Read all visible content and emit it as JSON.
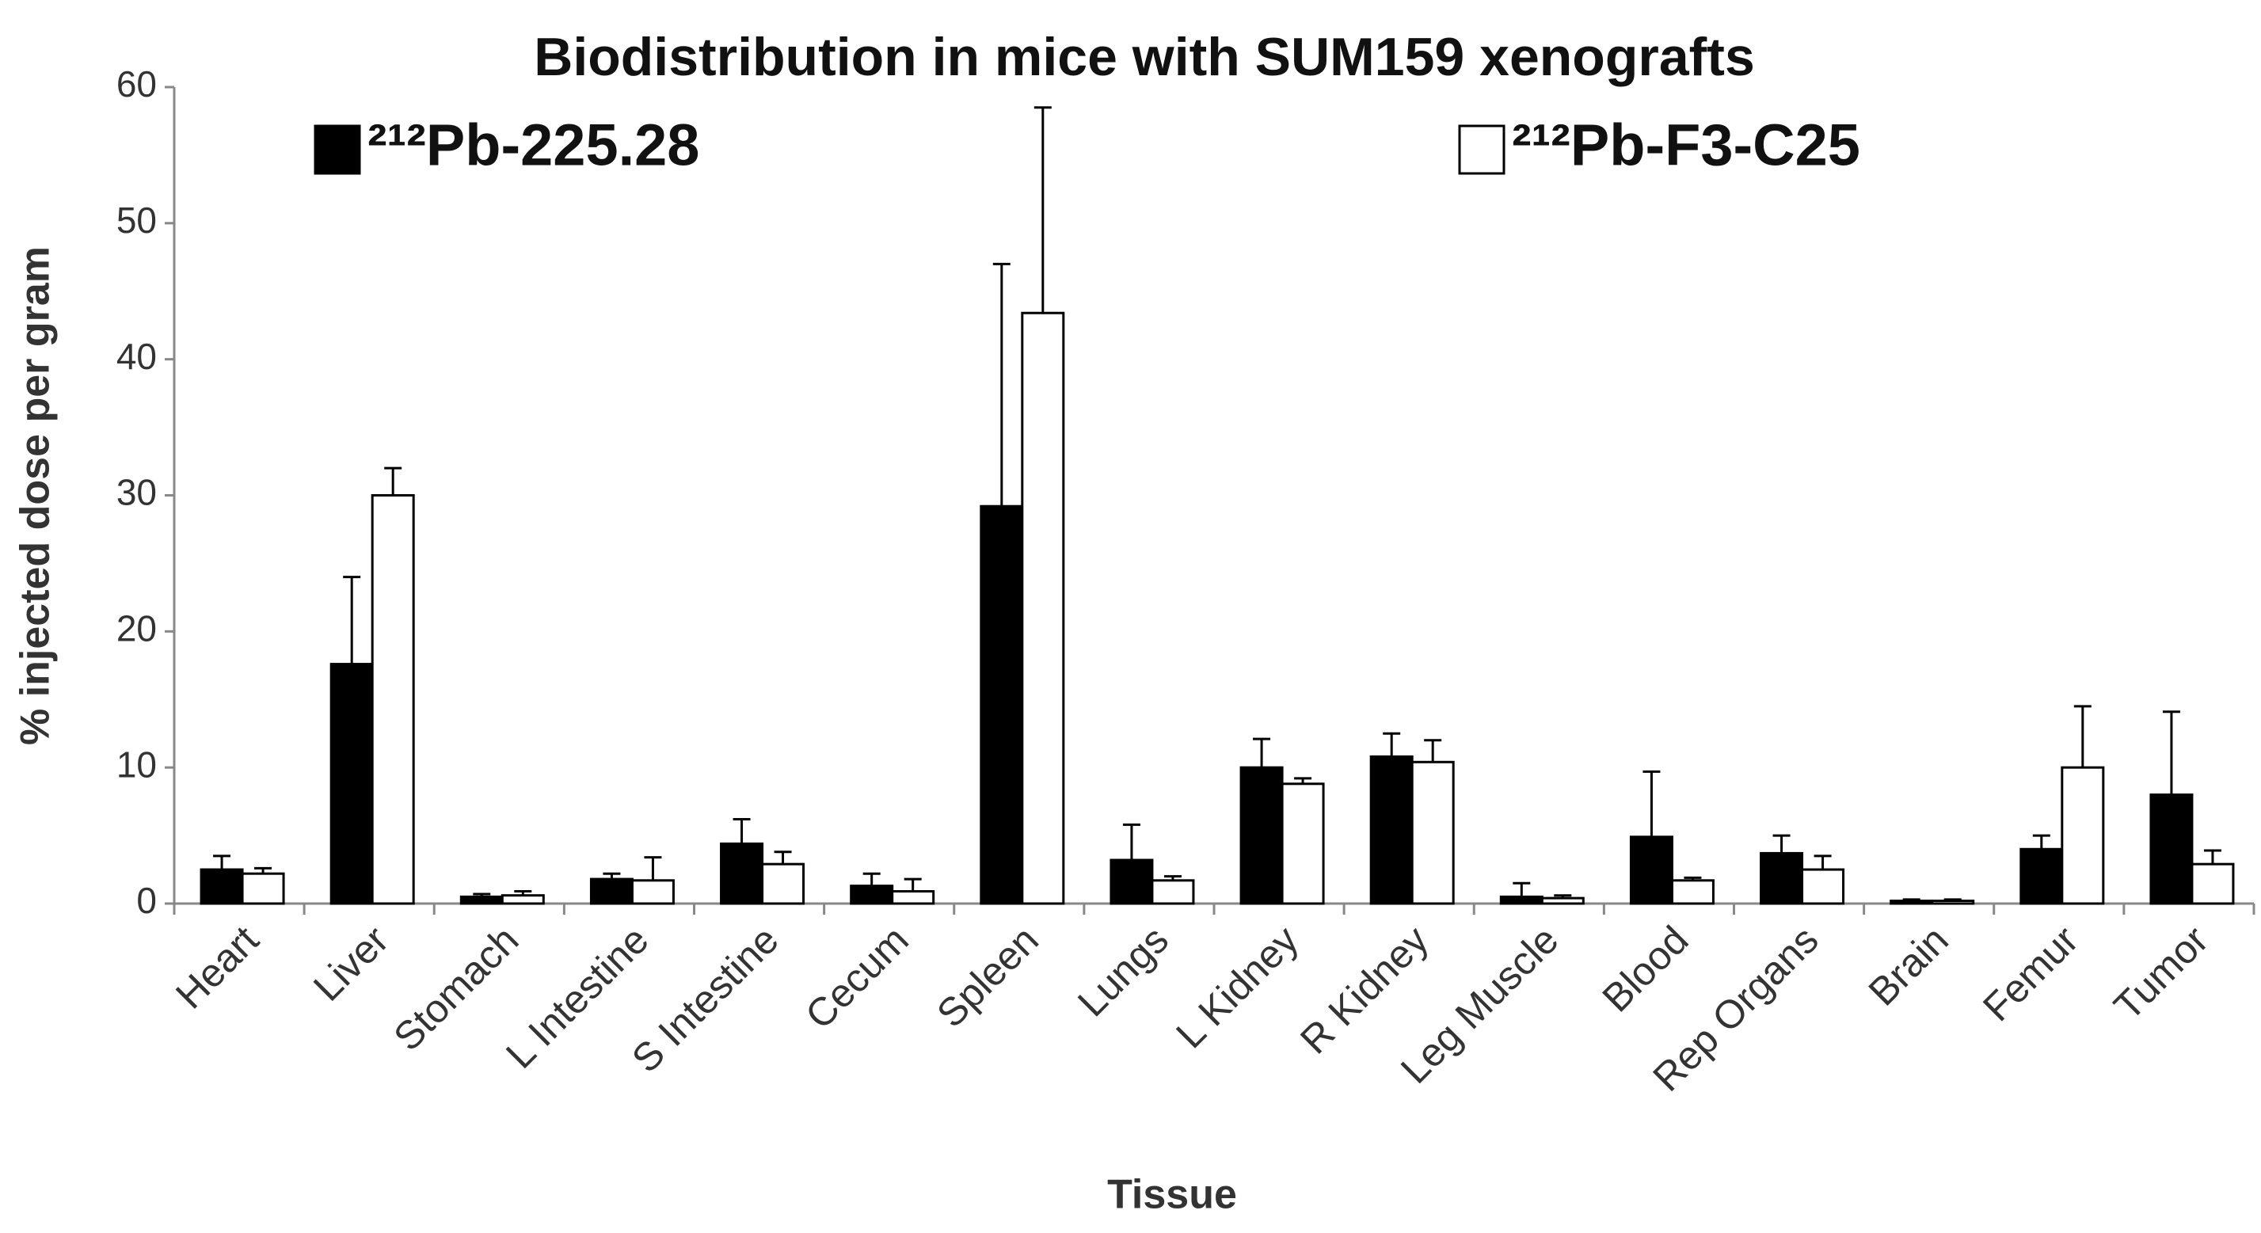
{
  "chart_data": {
    "type": "bar",
    "title": "Biodistribution in mice with SUM159 xenografts",
    "x_label": "Tissue",
    "y_label": "% injected dose per gram",
    "categories": [
      "Heart",
      "Liver",
      "Stomach",
      "L Intestine",
      "S Intestine",
      "Cecum",
      "Spleen",
      "Lungs",
      "L Kidney",
      "R Kidney",
      "Leg Muscle",
      "Blood",
      "Rep Organs",
      "Brain",
      "Femur",
      "Tumor"
    ],
    "series": [
      {
        "name": "²¹²Pb-225.28",
        "color": "#000000",
        "values": [
          2.5,
          17.6,
          0.5,
          1.8,
          4.4,
          1.3,
          29.2,
          3.2,
          10.0,
          10.8,
          0.5,
          4.9,
          3.7,
          0.2,
          4.0,
          8.0
        ],
        "errors": [
          1.0,
          6.4,
          0.2,
          0.4,
          1.8,
          0.9,
          17.8,
          2.6,
          2.1,
          1.7,
          1.0,
          4.8,
          1.3,
          0.1,
          1.0,
          6.1
        ]
      },
      {
        "name": "²¹²Pb-F3-C25",
        "color": "#ffffff",
        "values": [
          2.2,
          30.0,
          0.6,
          1.7,
          2.9,
          0.9,
          43.4,
          1.7,
          8.8,
          10.4,
          0.4,
          1.7,
          2.5,
          0.2,
          10.0,
          2.9
        ],
        "errors": [
          0.4,
          2.0,
          0.3,
          1.7,
          0.9,
          0.9,
          15.1,
          0.3,
          0.4,
          1.6,
          0.2,
          0.2,
          1.0,
          0.1,
          4.5,
          1.0
        ]
      }
    ],
    "ylim": [
      0,
      60
    ],
    "yticks": [
      0,
      10,
      20,
      30,
      40,
      50,
      60
    ],
    "grid": false
  }
}
